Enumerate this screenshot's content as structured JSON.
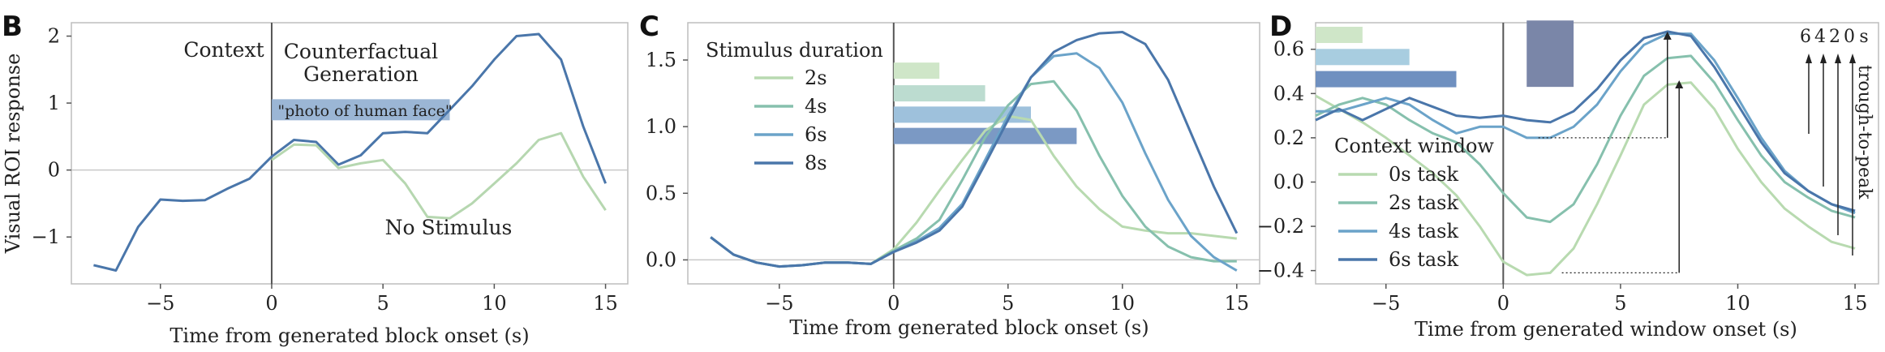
{
  "chart_data": [
    {
      "panel": "B",
      "type": "line",
      "xlabel": "Time from generated block onset (s)",
      "ylabel": "Visual ROI response",
      "xlim": [
        -9,
        16
      ],
      "ylim": [
        -1.7,
        2.2
      ],
      "xticks": [
        -5,
        0,
        5,
        10,
        15
      ],
      "yticks": [
        -1,
        0,
        1,
        2
      ],
      "zero_line": true,
      "onset_line_x": 0,
      "annotations": {
        "context": "Context",
        "generation_line1": "Counterfactual",
        "generation_line2": "Generation",
        "no_stimulus": "No Stimulus",
        "prompt": "\"photo of human face\""
      },
      "prompt_bar": {
        "x_start": 0,
        "x_end": 8,
        "y": 0.9
      },
      "series": [
        {
          "color": "#4a76aa",
          "x": [
            -8,
            -7,
            -6,
            -5,
            -4,
            -3,
            -2,
            -1,
            0,
            1,
            2,
            3,
            4,
            5,
            6,
            7,
            8,
            9,
            10,
            11,
            12,
            13,
            14,
            15
          ],
          "y": [
            -1.42,
            -1.5,
            -0.85,
            -0.44,
            -0.46,
            -0.45,
            -0.28,
            -0.13,
            0.2,
            0.45,
            0.42,
            0.08,
            0.22,
            0.55,
            0.57,
            0.55,
            0.9,
            1.25,
            1.65,
            2.0,
            2.03,
            1.65,
            0.65,
            -0.2
          ]
        },
        {
          "color": "#b6d7b0",
          "x": [
            0,
            1,
            2,
            3,
            4,
            5,
            6,
            7,
            8,
            9,
            10,
            11,
            12,
            13,
            14,
            15
          ],
          "y": [
            0.15,
            0.38,
            0.37,
            0.03,
            0.1,
            0.15,
            -0.2,
            -0.7,
            -0.72,
            -0.5,
            -0.2,
            0.1,
            0.45,
            0.55,
            -0.1,
            -0.6
          ]
        }
      ]
    },
    {
      "panel": "C",
      "type": "line",
      "xlabel": "Time from generated block onset (s)",
      "xlim": [
        -9,
        16
      ],
      "ylim": [
        -0.18,
        1.78
      ],
      "xticks": [
        -5,
        0,
        5,
        10,
        15
      ],
      "yticks": [
        0.0,
        0.5,
        1.0,
        1.5
      ],
      "ytick_labels": [
        "0.0",
        "0.5",
        "1.0",
        "1.5"
      ],
      "zero_line": true,
      "onset_line_x": 0,
      "legend_title": "Stimulus duration",
      "legend_position": "upper-left",
      "duration_bars": [
        {
          "x_start": 0,
          "x_end": 2,
          "y": 1.42,
          "color": "#cfe6c8"
        },
        {
          "x_start": 0,
          "x_end": 4,
          "y": 1.25,
          "color": "#bcdcd0"
        },
        {
          "x_start": 0,
          "x_end": 6,
          "y": 1.09,
          "color": "#9ec1dc"
        },
        {
          "x_start": 0,
          "x_end": 8,
          "y": 0.93,
          "color": "#7b99c4"
        }
      ],
      "series": [
        {
          "name": "2s",
          "color": "#b8dab0",
          "x": [
            -8,
            -7,
            -6,
            -5,
            -4,
            -3,
            -2,
            -1,
            0,
            1,
            2,
            3,
            4,
            5,
            6,
            7,
            8,
            9,
            10,
            11,
            12,
            13,
            14,
            15
          ],
          "y": [
            0.17,
            0.04,
            -0.02,
            -0.05,
            -0.04,
            -0.02,
            -0.02,
            -0.03,
            0.08,
            0.28,
            0.52,
            0.75,
            0.97,
            1.08,
            1.05,
            0.78,
            0.55,
            0.38,
            0.25,
            0.22,
            0.2,
            0.2,
            0.18,
            0.16
          ]
        },
        {
          "name": "4s",
          "color": "#86c0ad",
          "x": [
            -8,
            -7,
            -6,
            -5,
            -4,
            -3,
            -2,
            -1,
            0,
            1,
            2,
            3,
            4,
            5,
            6,
            7,
            8,
            9,
            10,
            11,
            12,
            13,
            14,
            15
          ],
          "y": [
            0.17,
            0.04,
            -0.02,
            -0.05,
            -0.04,
            -0.02,
            -0.02,
            -0.03,
            0.07,
            0.16,
            0.3,
            0.6,
            0.92,
            1.16,
            1.32,
            1.34,
            1.12,
            0.78,
            0.48,
            0.25,
            0.1,
            0.02,
            -0.01,
            -0.01
          ]
        },
        {
          "name": "6s",
          "color": "#6ba3c9",
          "x": [
            -8,
            -7,
            -6,
            -5,
            -4,
            -3,
            -2,
            -1,
            0,
            1,
            2,
            3,
            4,
            5,
            6,
            7,
            8,
            9,
            10,
            11,
            12,
            13,
            14,
            15
          ],
          "y": [
            0.17,
            0.04,
            -0.02,
            -0.05,
            -0.04,
            -0.02,
            -0.02,
            -0.03,
            0.06,
            0.14,
            0.24,
            0.42,
            0.75,
            1.08,
            1.37,
            1.53,
            1.55,
            1.44,
            1.18,
            0.8,
            0.45,
            0.18,
            0.02,
            -0.08
          ]
        },
        {
          "name": "8s",
          "color": "#4a76aa",
          "x": [
            -8,
            -7,
            -6,
            -5,
            -4,
            -3,
            -2,
            -1,
            0,
            1,
            2,
            3,
            4,
            5,
            6,
            7,
            8,
            9,
            10,
            11,
            12,
            13,
            14,
            15
          ],
          "y": [
            0.17,
            0.04,
            -0.02,
            -0.05,
            -0.04,
            -0.02,
            -0.02,
            -0.03,
            0.06,
            0.13,
            0.22,
            0.4,
            0.72,
            1.05,
            1.37,
            1.56,
            1.65,
            1.7,
            1.71,
            1.62,
            1.35,
            0.95,
            0.55,
            0.2
          ]
        }
      ]
    },
    {
      "panel": "D",
      "type": "line",
      "xlabel": "Time from generated window onset (s)",
      "xlim": [
        -8,
        16
      ],
      "ylim": [
        -0.46,
        0.72
      ],
      "xticks": [
        -5,
        0,
        5,
        10,
        15
      ],
      "yticks": [
        -0.4,
        -0.2,
        0.0,
        0.2,
        0.4,
        0.6
      ],
      "ytick_labels": [
        "−0.4",
        "−0.2",
        "0.0",
        "0.2",
        "0.4",
        "0.6"
      ],
      "onset_line_x": 0,
      "legend_title": "Context window",
      "legend_position": "lower-left",
      "context_bars": [
        {
          "x_start": -8,
          "x_end": -6,
          "y": 0.665,
          "color": "#cfe6c8"
        },
        {
          "x_start": -8,
          "x_end": -4,
          "y": 0.565,
          "color": "#a8cde0"
        },
        {
          "x_start": -8,
          "x_end": -2,
          "y": 0.465,
          "color": "#6f90c0"
        }
      ],
      "window_block": {
        "x_start": 1,
        "x_end": 3,
        "y_low": 0.43,
        "y_high": 0.73,
        "color": "#7a86a8"
      },
      "trough_to_peak": {
        "label": "trough-to-peak",
        "column_labels": [
          "6",
          "4",
          "2",
          "0",
          "s"
        ],
        "arrows": [
          {
            "x_from": 2.5,
            "y_trough": -0.41,
            "x_peak": 7.5,
            "y_peak": 0.46
          },
          {
            "x_from": 1.5,
            "y_trough": 0.2,
            "x_peak": 7,
            "y_peak": 0.68
          }
        ]
      },
      "series": [
        {
          "name": "0s task",
          "color": "#b8dab0",
          "x": [
            -8,
            -7,
            -6,
            -5,
            -4,
            -3,
            -2,
            -1,
            0,
            1,
            2,
            3,
            4,
            5,
            6,
            7,
            8,
            9,
            10,
            11,
            12,
            13,
            14,
            15
          ],
          "y": [
            0.39,
            0.33,
            0.27,
            0.2,
            0.12,
            0.04,
            -0.06,
            -0.2,
            -0.36,
            -0.42,
            -0.41,
            -0.3,
            -0.1,
            0.12,
            0.35,
            0.44,
            0.45,
            0.33,
            0.15,
            0.0,
            -0.12,
            -0.2,
            -0.27,
            -0.3
          ]
        },
        {
          "name": "2s task",
          "color": "#86c0ad",
          "x": [
            -8,
            -7,
            -6,
            -5,
            -4,
            -3,
            -2,
            -1,
            0,
            1,
            2,
            3,
            4,
            5,
            6,
            7,
            8,
            9,
            10,
            11,
            12,
            13,
            14,
            15
          ],
          "y": [
            0.3,
            0.35,
            0.38,
            0.35,
            0.28,
            0.22,
            0.18,
            0.08,
            -0.05,
            -0.16,
            -0.18,
            -0.1,
            0.08,
            0.3,
            0.48,
            0.56,
            0.57,
            0.45,
            0.28,
            0.12,
            0.0,
            -0.07,
            -0.13,
            -0.16
          ]
        },
        {
          "name": "4s task",
          "color": "#6ba3c9",
          "x": [
            -8,
            -7,
            -6,
            -5,
            -4,
            -3,
            -2,
            -1,
            0,
            1,
            2,
            3,
            4,
            5,
            6,
            7,
            8,
            9,
            10,
            11,
            12,
            13,
            14,
            15
          ],
          "y": [
            0.32,
            0.32,
            0.35,
            0.38,
            0.35,
            0.28,
            0.22,
            0.25,
            0.25,
            0.2,
            0.2,
            0.25,
            0.35,
            0.5,
            0.62,
            0.67,
            0.67,
            0.55,
            0.38,
            0.2,
            0.05,
            -0.04,
            -0.1,
            -0.14
          ]
        },
        {
          "name": "6s task",
          "color": "#4a76aa",
          "x": [
            -8,
            -7,
            -6,
            -5,
            -4,
            -3,
            -2,
            -1,
            0,
            1,
            2,
            3,
            4,
            5,
            6,
            7,
            8,
            9,
            10,
            11,
            12,
            13,
            14,
            15
          ],
          "y": [
            0.28,
            0.33,
            0.28,
            0.33,
            0.38,
            0.34,
            0.3,
            0.29,
            0.3,
            0.28,
            0.27,
            0.32,
            0.42,
            0.55,
            0.65,
            0.68,
            0.66,
            0.52,
            0.35,
            0.18,
            0.04,
            -0.04,
            -0.1,
            -0.13
          ]
        }
      ]
    }
  ]
}
